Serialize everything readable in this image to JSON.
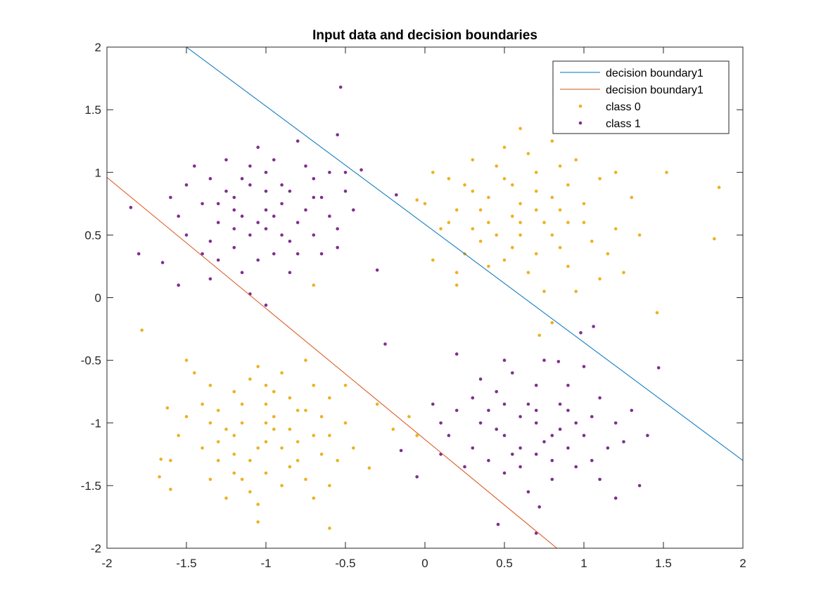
{
  "chart_data": {
    "type": "scatter",
    "title": "Input data and decision boundaries",
    "xlabel": "",
    "ylabel": "",
    "xlim": [
      -2,
      2
    ],
    "ylim": [
      -2,
      2
    ],
    "xticks": [
      -2,
      -1.5,
      -1,
      -0.5,
      0,
      0.5,
      1,
      1.5,
      2
    ],
    "yticks": [
      -2,
      -1.5,
      -1,
      -0.5,
      0,
      0.5,
      1,
      1.5,
      2
    ],
    "xtick_labels": [
      "-2",
      "-1.5",
      "-1",
      "-0.5",
      "0",
      "0.5",
      "1",
      "1.5",
      "2"
    ],
    "ytick_labels": [
      "-2",
      "-1.5",
      "-1",
      "-0.5",
      "0",
      "0.5",
      "1",
      "1.5",
      "2"
    ],
    "grid": false,
    "legend_position": "top-right",
    "lines": [
      {
        "name": "decision boundary1",
        "color": "#0072BD",
        "x": [
          -1.5,
          2.0
        ],
        "y": [
          2.0,
          -1.3
        ]
      },
      {
        "name": "decision boundary1",
        "color": "#D95319",
        "x": [
          -2.0,
          0.83
        ],
        "y": [
          0.96,
          -2.0
        ]
      }
    ],
    "series": [
      {
        "name": "class 0",
        "color": "#EDB120",
        "points": [
          [
            0.55,
            0.9
          ],
          [
            0.7,
            1.0
          ],
          [
            0.4,
            0.6
          ],
          [
            0.9,
            0.6
          ],
          [
            0.8,
            0.8
          ],
          [
            0.3,
            0.85
          ],
          [
            0.6,
            0.5
          ],
          [
            1.0,
            0.75
          ],
          [
            0.5,
            0.3
          ],
          [
            0.85,
            0.4
          ],
          [
            0.2,
            0.7
          ],
          [
            0.65,
            1.15
          ],
          [
            1.1,
            0.95
          ],
          [
            0.45,
            1.05
          ],
          [
            0.75,
            0.6
          ],
          [
            0.35,
            0.45
          ],
          [
            0.95,
            1.1
          ],
          [
            0.6,
            0.75
          ],
          [
            0.15,
            0.95
          ],
          [
            1.2,
            0.55
          ],
          [
            0.25,
            0.35
          ],
          [
            0.55,
            0.65
          ],
          [
            0.8,
            1.25
          ],
          [
            0.4,
            0.8
          ],
          [
            1.05,
            0.45
          ],
          [
            0.7,
            0.35
          ],
          [
            0.1,
            0.55
          ],
          [
            0.9,
            0.9
          ],
          [
            0.5,
            0.95
          ],
          [
            0.65,
            0.2
          ],
          [
            1.3,
            0.8
          ],
          [
            0.3,
            1.1
          ],
          [
            0.85,
            0.7
          ],
          [
            0.2,
            0.2
          ],
          [
            1.15,
            0.35
          ],
          [
            0.6,
            1.35
          ],
          [
            0.05,
            1.0
          ],
          [
            0.75,
            0.05
          ],
          [
            1.25,
            0.2
          ],
          [
            0.45,
            0.5
          ],
          [
            0.0,
            0.75
          ],
          [
            0.9,
            0.25
          ],
          [
            1.0,
            0.6
          ],
          [
            0.35,
            0.7
          ],
          [
            0.7,
            0.85
          ],
          [
            0.55,
            0.4
          ],
          [
            0.25,
            0.9
          ],
          [
            1.1,
            0.15
          ],
          [
            0.8,
            0.5
          ],
          [
            0.15,
            0.6
          ],
          [
            1.35,
            0.5
          ],
          [
            0.5,
            1.2
          ],
          [
            0.95,
            0.05
          ],
          [
            0.4,
            0.25
          ],
          [
            0.6,
            0.6
          ],
          [
            0.3,
            0.55
          ],
          [
            1.2,
            1.0
          ],
          [
            0.85,
            1.05
          ],
          [
            0.05,
            0.3
          ],
          [
            0.7,
            0.7
          ],
          [
            1.52,
            1.0
          ],
          [
            1.85,
            0.88
          ],
          [
            1.82,
            0.47
          ],
          [
            1.46,
            -0.12
          ],
          [
            0.8,
            -0.2
          ],
          [
            0.72,
            -0.3
          ],
          [
            -0.05,
            0.78
          ],
          [
            0.2,
            0.1
          ],
          [
            -1.0,
            -1.0
          ],
          [
            -1.2,
            -1.1
          ],
          [
            -0.8,
            -0.9
          ],
          [
            -1.1,
            -1.3
          ],
          [
            -0.9,
            -1.2
          ],
          [
            -1.3,
            -0.9
          ],
          [
            -0.7,
            -1.1
          ],
          [
            -1.0,
            -0.7
          ],
          [
            -1.2,
            -1.4
          ],
          [
            -0.85,
            -1.35
          ],
          [
            -1.4,
            -1.2
          ],
          [
            -0.6,
            -0.8
          ],
          [
            -1.05,
            -0.55
          ],
          [
            -0.75,
            -1.45
          ],
          [
            -1.35,
            -0.7
          ],
          [
            -0.95,
            -0.95
          ],
          [
            -1.15,
            -0.85
          ],
          [
            -0.65,
            -1.25
          ],
          [
            -1.25,
            -1.05
          ],
          [
            -0.5,
            -1.0
          ],
          [
            -1.5,
            -0.95
          ],
          [
            -0.9,
            -0.6
          ],
          [
            -1.1,
            -1.55
          ],
          [
            -0.8,
            -1.15
          ],
          [
            -1.3,
            -1.3
          ],
          [
            -0.7,
            -0.7
          ],
          [
            -1.0,
            -1.4
          ],
          [
            -1.45,
            -0.6
          ],
          [
            -0.55,
            -1.3
          ],
          [
            -1.2,
            -0.75
          ],
          [
            -0.85,
            -0.8
          ],
          [
            -1.05,
            -1.2
          ],
          [
            -1.35,
            -1.45
          ],
          [
            -0.6,
            -1.5
          ],
          [
            -1.55,
            -1.1
          ],
          [
            -0.95,
            -1.05
          ],
          [
            -0.75,
            -0.5
          ],
          [
            -1.15,
            -1.0
          ],
          [
            -1.4,
            -0.85
          ],
          [
            -0.45,
            -1.2
          ],
          [
            -1.25,
            -1.6
          ],
          [
            -0.65,
            -0.95
          ],
          [
            -0.9,
            -1.5
          ],
          [
            -1.0,
            -0.85
          ],
          [
            -1.6,
            -1.3
          ],
          [
            -0.8,
            -1.3
          ],
          [
            -1.1,
            -0.65
          ],
          [
            -0.7,
            -1.6
          ],
          [
            -1.3,
            -1.15
          ],
          [
            -0.5,
            -0.7
          ],
          [
            -1.05,
            -1.65
          ],
          [
            -1.5,
            -0.5
          ],
          [
            -0.85,
            -1.05
          ],
          [
            -1.2,
            -1.25
          ],
          [
            -0.95,
            -0.75
          ],
          [
            -0.6,
            -1.1
          ],
          [
            -1.35,
            -1.0
          ],
          [
            -0.75,
            -0.9
          ],
          [
            -1.15,
            -1.45
          ],
          [
            -1.0,
            -1.15
          ],
          [
            -1.78,
            -0.26
          ],
          [
            -1.67,
            -1.43
          ],
          [
            -1.6,
            -1.53
          ],
          [
            -1.66,
            -1.29
          ],
          [
            -1.62,
            -0.88
          ],
          [
            -0.6,
            -1.84
          ],
          [
            -1.05,
            -1.79
          ],
          [
            -0.7,
            0.1
          ],
          [
            -0.35,
            -1.36
          ],
          [
            -0.3,
            -0.85
          ],
          [
            -0.05,
            -1.1
          ],
          [
            -0.1,
            -0.95
          ],
          [
            -0.2,
            -1.05
          ]
        ]
      },
      {
        "name": "class 1",
        "color": "#7E2F8E",
        "points": [
          [
            -1.0,
            0.7
          ],
          [
            -1.2,
            0.8
          ],
          [
            -0.8,
            0.6
          ],
          [
            -1.1,
            0.5
          ],
          [
            -0.9,
            0.9
          ],
          [
            -1.3,
            0.6
          ],
          [
            -0.7,
            0.8
          ],
          [
            -1.0,
            1.0
          ],
          [
            -1.2,
            0.4
          ],
          [
            -0.85,
            0.45
          ],
          [
            -1.4,
            0.75
          ],
          [
            -0.6,
            0.65
          ],
          [
            -1.05,
            1.2
          ],
          [
            -0.75,
            1.05
          ],
          [
            -1.35,
            0.95
          ],
          [
            -0.95,
            0.35
          ],
          [
            -1.15,
            0.65
          ],
          [
            -0.65,
            0.35
          ],
          [
            -1.25,
            1.1
          ],
          [
            -0.5,
            0.85
          ],
          [
            -1.5,
            0.5
          ],
          [
            -0.9,
            0.75
          ],
          [
            -1.1,
            0.9
          ],
          [
            -0.8,
            1.25
          ],
          [
            -1.3,
            0.3
          ],
          [
            -0.7,
            0.5
          ],
          [
            -1.0,
            0.55
          ],
          [
            -1.45,
            1.05
          ],
          [
            -0.55,
            0.55
          ],
          [
            -1.2,
            0.7
          ],
          [
            -0.85,
            0.85
          ],
          [
            -1.05,
            0.3
          ],
          [
            -1.35,
            0.45
          ],
          [
            -0.6,
            1.0
          ],
          [
            -1.55,
            0.65
          ],
          [
            -0.95,
            1.1
          ],
          [
            -1.15,
            0.2
          ],
          [
            -0.75,
            0.7
          ],
          [
            -1.25,
            0.85
          ],
          [
            -0.45,
            0.7
          ],
          [
            -1.6,
            0.8
          ],
          [
            -1.0,
            0.85
          ],
          [
            -0.65,
            0.8
          ],
          [
            -1.4,
            0.35
          ],
          [
            -0.9,
            0.5
          ],
          [
            -1.1,
            1.05
          ],
          [
            -0.8,
            0.35
          ],
          [
            -1.3,
            0.75
          ],
          [
            -0.7,
            0.95
          ],
          [
            -1.05,
            0.6
          ],
          [
            -1.5,
            0.9
          ],
          [
            -0.55,
            0.4
          ],
          [
            -1.2,
            0.55
          ],
          [
            -0.85,
            0.2
          ],
          [
            -0.95,
            0.65
          ],
          [
            -1.35,
            0.15
          ],
          [
            -0.5,
            1.0
          ],
          [
            -1.15,
            0.95
          ],
          [
            -1.85,
            0.72
          ],
          [
            -1.8,
            0.35
          ],
          [
            -1.65,
            0.28
          ],
          [
            -1.55,
            0.1
          ],
          [
            -0.53,
            1.68
          ],
          [
            -0.55,
            1.3
          ],
          [
            -0.4,
            1.02
          ],
          [
            -0.3,
            0.22
          ],
          [
            -0.25,
            -0.37
          ],
          [
            -0.18,
            0.82
          ],
          [
            -1.0,
            -0.06
          ],
          [
            -1.1,
            0.03
          ],
          [
            0.7,
            -1.0
          ],
          [
            0.5,
            -1.1
          ],
          [
            0.9,
            -0.9
          ],
          [
            0.6,
            -1.2
          ],
          [
            0.8,
            -1.3
          ],
          [
            0.4,
            -0.9
          ],
          [
            1.0,
            -1.1
          ],
          [
            0.7,
            -0.7
          ],
          [
            0.5,
            -1.4
          ],
          [
            0.85,
            -1.05
          ],
          [
            0.3,
            -1.2
          ],
          [
            1.1,
            -0.8
          ],
          [
            0.65,
            -0.85
          ],
          [
            0.95,
            -1.35
          ],
          [
            0.45,
            -0.75
          ],
          [
            0.75,
            -1.15
          ],
          [
            1.05,
            -1.3
          ],
          [
            0.35,
            -1.0
          ],
          [
            0.55,
            -0.6
          ],
          [
            1.2,
            -1.0
          ],
          [
            0.6,
            -0.95
          ],
          [
            0.9,
            -0.7
          ],
          [
            0.2,
            -0.9
          ],
          [
            0.8,
            -1.45
          ],
          [
            1.0,
            -0.55
          ],
          [
            0.4,
            -1.3
          ],
          [
            0.7,
            -1.25
          ],
          [
            1.15,
            -1.2
          ],
          [
            0.5,
            -0.85
          ],
          [
            0.25,
            -1.35
          ],
          [
            0.85,
            -0.85
          ],
          [
            0.65,
            -1.55
          ],
          [
            1.3,
            -0.9
          ],
          [
            0.15,
            -1.1
          ],
          [
            0.95,
            -1.0
          ],
          [
            0.55,
            -1.25
          ],
          [
            0.75,
            -0.5
          ],
          [
            1.1,
            -1.45
          ],
          [
            0.35,
            -0.65
          ],
          [
            0.6,
            -1.35
          ],
          [
            0.45,
            -1.05
          ],
          [
            0.9,
            -1.2
          ],
          [
            1.25,
            -1.15
          ],
          [
            0.3,
            -0.8
          ],
          [
            0.7,
            -0.9
          ],
          [
            1.05,
            -0.95
          ],
          [
            0.5,
            -0.5
          ],
          [
            0.8,
            -1.1
          ],
          [
            0.1,
            -1.25
          ],
          [
            1.4,
            -1.1
          ],
          [
            0.46,
            -1.81
          ],
          [
            0.7,
            -1.88
          ],
          [
            0.72,
            -1.67
          ],
          [
            0.2,
            -0.45
          ],
          [
            0.1,
            -1.0
          ],
          [
            -0.05,
            -1.43
          ],
          [
            -0.15,
            -1.22
          ],
          [
            1.47,
            -0.56
          ],
          [
            1.06,
            -0.23
          ],
          [
            0.98,
            -0.28
          ],
          [
            0.84,
            -0.51
          ],
          [
            0.05,
            -0.85
          ],
          [
            1.35,
            -1.5
          ],
          [
            1.2,
            -1.6
          ]
        ]
      }
    ]
  }
}
